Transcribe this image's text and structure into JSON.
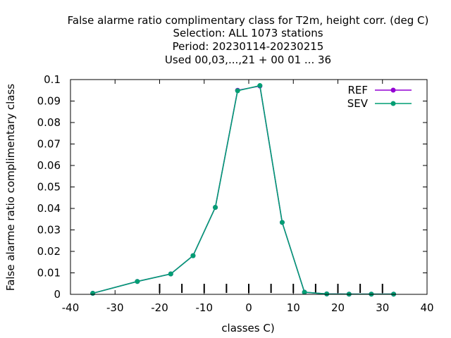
{
  "chart_data": {
    "type": "line",
    "title_lines": [
      "False alarme ratio complimentary class  for T2m, height corr. (deg C)",
      "Selection: ALL   1073 stations",
      "Period: 20230114-20230215",
      "Used  00,03,...,21  + 00 01 ... 36"
    ],
    "xlabel": "classes C)",
    "ylabel": "False alarme ratio complimentary class",
    "xlim": [
      -40,
      40
    ],
    "ylim": [
      0,
      0.1
    ],
    "xticks": [
      "-40",
      "-30",
      "-20",
      "-10",
      "0",
      "10",
      "20",
      "30",
      "40"
    ],
    "yticks": [
      "0",
      "0.01",
      "0.02",
      "0.03",
      "0.04",
      "0.05",
      "0.06",
      "0.07",
      "0.08",
      "0.09",
      "0.1"
    ],
    "class_boundaries": [
      -20,
      -15,
      -10,
      -5,
      0,
      5,
      10,
      15,
      20,
      25,
      30
    ],
    "grid": false,
    "legend_position": "top-right",
    "series": [
      {
        "name": "REF",
        "color": "#9400d3",
        "x": [
          -35,
          -25,
          -17.5,
          -12.5,
          -7.5,
          -2.5,
          2.5,
          7.5,
          12.5,
          17.5,
          22.5,
          27.5,
          32.5
        ],
        "y": [
          0.0005,
          0.006,
          0.0095,
          0.018,
          0.0405,
          0.095,
          0.097,
          0.0335,
          0.001,
          0.0002,
          0.0001,
          0.0001,
          0.0001
        ]
      },
      {
        "name": "SEV",
        "color": "#009e73",
        "x": [
          -35,
          -25,
          -17.5,
          -12.5,
          -7.5,
          -2.5,
          2.5,
          7.5,
          12.5,
          17.5,
          22.5,
          27.5,
          32.5
        ],
        "y": [
          0.0005,
          0.006,
          0.0095,
          0.018,
          0.0405,
          0.0948,
          0.0972,
          0.0335,
          0.001,
          0.0002,
          0.0001,
          0.0001,
          0.0001
        ]
      }
    ]
  }
}
